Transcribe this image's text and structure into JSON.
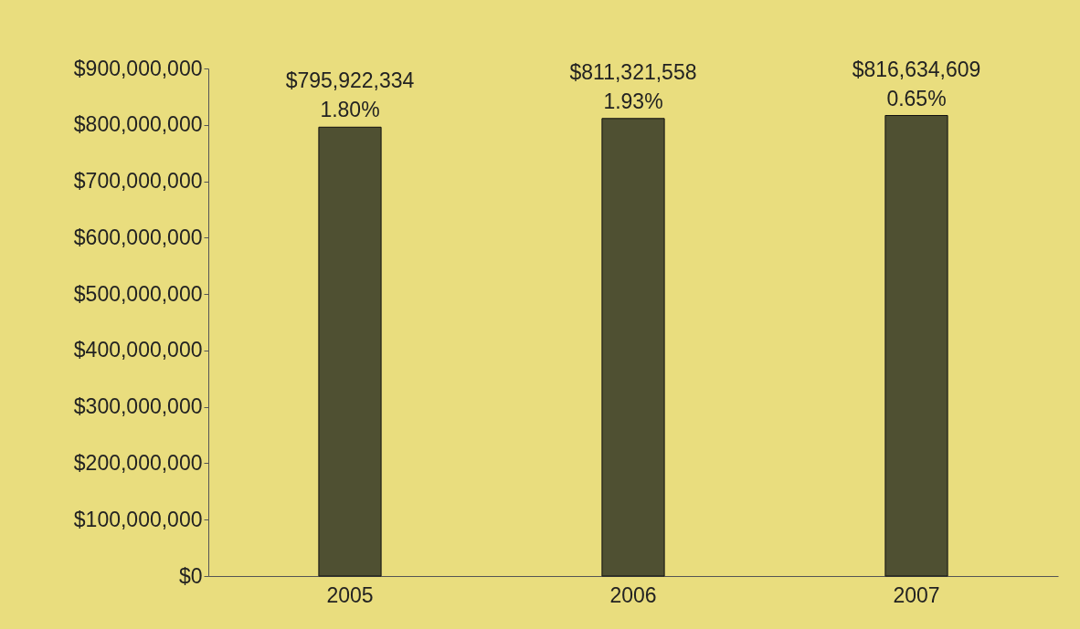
{
  "chart_data": {
    "type": "bar",
    "categories": [
      "2005",
      "2006",
      "2007"
    ],
    "values": [
      795922334,
      811321558,
      816634609
    ],
    "value_labels": [
      "$795,922,334",
      "$811,321,558",
      "$816,634,609"
    ],
    "color": "#4f5032",
    "annotations": [
      {
        "text": "1.80%",
        "x": "2005",
        "y": 795922334
      },
      {
        "text": "1.93%",
        "x": "2006",
        "y": 811321558
      },
      {
        "text": "0.65%",
        "x": "2007",
        "y": 816634609
      }
    ],
    "ylim": [
      0,
      900000000
    ],
    "yticks": [
      {
        "value": 0,
        "label": "$0"
      },
      {
        "value": 100000000,
        "label": "$100,000,000"
      },
      {
        "value": 200000000,
        "label": "$200,000,000"
      },
      {
        "value": 300000000,
        "label": "$300,000,000"
      },
      {
        "value": 400000000,
        "label": "$400,000,000"
      },
      {
        "value": 500000000,
        "label": "$500,000,000"
      },
      {
        "value": 600000000,
        "label": "$600,000,000"
      },
      {
        "value": 700000000,
        "label": "$700,000,000"
      },
      {
        "value": 800000000,
        "label": "$800,000,000"
      },
      {
        "value": 900000000,
        "label": "$900,000,000"
      }
    ],
    "grid": false
  }
}
